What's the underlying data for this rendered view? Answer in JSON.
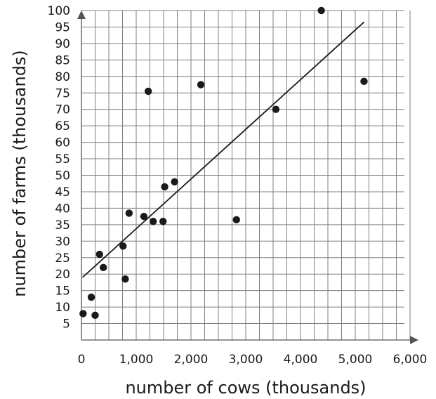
{
  "chart_data": {
    "type": "scatter",
    "xlabel": "number of cows (thousands)",
    "ylabel": "number of farms (thousands)",
    "xlim": [
      0,
      6000
    ],
    "ylim": [
      0,
      100
    ],
    "x_ticks": [
      0,
      1000,
      2000,
      3000,
      4000,
      5000,
      6000
    ],
    "x_tick_labels": [
      "0",
      "1,000",
      "2,000",
      "3,000",
      "4,000",
      "5,000",
      "6,000"
    ],
    "y_ticks": [
      5,
      10,
      15,
      20,
      25,
      30,
      35,
      40,
      45,
      50,
      55,
      60,
      65,
      70,
      75,
      80,
      85,
      90,
      95,
      100
    ],
    "y_tick_labels": [
      "5",
      "10",
      "15",
      "20",
      "25",
      "30",
      "35",
      "40",
      "45",
      "50",
      "55",
      "60",
      "65",
      "70",
      "75",
      "80",
      "85",
      "90",
      "95",
      "100"
    ],
    "grid": true,
    "series": [
      {
        "points": [
          [
            30,
            8
          ],
          [
            180,
            13
          ],
          [
            250,
            7.5
          ],
          [
            330,
            26
          ],
          [
            400,
            22
          ],
          [
            760,
            28.5
          ],
          [
            800,
            18.5
          ],
          [
            870,
            38.5
          ],
          [
            1140,
            37.5
          ],
          [
            1220,
            75.5
          ],
          [
            1310,
            36
          ],
          [
            1490,
            36
          ],
          [
            1520,
            46.5
          ],
          [
            1700,
            48
          ],
          [
            2180,
            77.5
          ],
          [
            2830,
            36.5
          ],
          [
            3550,
            70
          ],
          [
            4380,
            100
          ],
          [
            5160,
            78.5
          ]
        ]
      }
    ],
    "trend_line": {
      "x": [
        20,
        5160
      ],
      "y": [
        19,
        96.5
      ]
    },
    "colors": {
      "points": "#1a1a1a",
      "grid": "#7f7f7f",
      "axis": "#555555"
    }
  }
}
